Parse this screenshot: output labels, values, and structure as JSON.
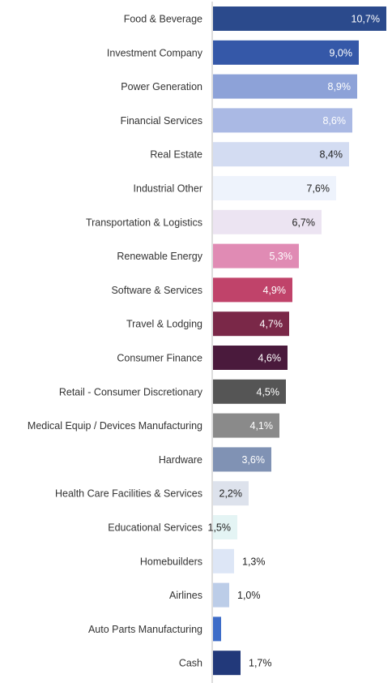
{
  "chart_data": {
    "type": "bar",
    "orientation": "horizontal",
    "unit": "%",
    "xlim": [
      0,
      11
    ],
    "categories": [
      "Food & Beverage",
      "Investment Company",
      "Power Generation",
      "Financial Services",
      "Real Estate",
      "Industrial Other",
      "Transportation & Logistics",
      "Renewable Energy",
      "Software & Services",
      "Travel & Lodging",
      "Consumer Finance",
      "Retail - Consumer Discretionary",
      "Medical Equip / Devices Manufacturing",
      "Hardware",
      "Health Care Facilities & Services",
      "Educational Services",
      "Homebuilders",
      "Airlines",
      "Auto Parts Manufacturing",
      "Cash"
    ],
    "values": [
      10.7,
      9.0,
      8.9,
      8.6,
      8.4,
      7.6,
      6.7,
      5.3,
      4.9,
      4.7,
      4.6,
      4.5,
      4.1,
      3.6,
      2.2,
      1.5,
      1.3,
      1.0,
      0.5,
      1.7
    ],
    "value_labels": [
      "10,7%",
      "9,0%",
      "8,9%",
      "8,6%",
      "8,4%",
      "7,6%",
      "6,7%",
      "5,3%",
      "4,9%",
      "4,7%",
      "4,6%",
      "4,5%",
      "4,1%",
      "3,6%",
      "2,2%",
      "1,5%",
      "1,3%",
      "1,0%",
      "",
      "1,7%"
    ],
    "bar_colors": [
      "#2b4a8c",
      "#3558a8",
      "#8da2d8",
      "#aab9e4",
      "#d3dcf2",
      "#eef3fc",
      "#ece4f2",
      "#e08bb4",
      "#c0436a",
      "#7a2848",
      "#4a1a3c",
      "#555555",
      "#8a8a8a",
      "#8092b4",
      "#dde2ec",
      "#e4f4f4",
      "#dde6f6",
      "#bccde8",
      "#3d6cc8",
      "#22397a"
    ],
    "label_colors": [
      "#ffffff",
      "#ffffff",
      "#ffffff",
      "#ffffff",
      "#222222",
      "#222222",
      "#222222",
      "#ffffff",
      "#ffffff",
      "#ffffff",
      "#ffffff",
      "#ffffff",
      "#ffffff",
      "#ffffff",
      "#222222",
      "#222222",
      "#222222",
      "#222222",
      "#222222",
      "#222222"
    ],
    "label_placement": [
      "inside",
      "inside",
      "inside",
      "inside",
      "inside",
      "inside",
      "inside",
      "inside",
      "inside",
      "inside",
      "inside",
      "inside",
      "inside",
      "inside",
      "inside",
      "inside",
      "outside",
      "outside",
      "none",
      "outside"
    ],
    "grid": false,
    "axis_line_color": "#bbbbbb"
  }
}
